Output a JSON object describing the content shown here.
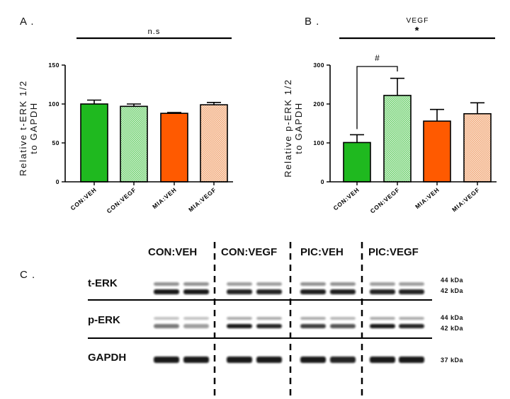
{
  "panels": {
    "a_label": "A .",
    "b_label": "B .",
    "c_label": "C ."
  },
  "chart_data": [
    {
      "type": "bar",
      "panel": "A",
      "title": "",
      "ylabel_line1": "Relative t-ERK 1/2",
      "ylabel_line2": "to GAPDH",
      "ylim": [
        0,
        150
      ],
      "yticks": [
        "0",
        "50",
        "100",
        "150"
      ],
      "categories": [
        "CON:VEH",
        "CON:VEGF",
        "MIA:VEH",
        "MIA:VEGF"
      ],
      "values": [
        100,
        97,
        88,
        99
      ],
      "errors": [
        5,
        3,
        1,
        3
      ],
      "fills": [
        "solid-green",
        "check-green",
        "solid-orange",
        "check-orange"
      ],
      "annotation": "n.s",
      "bracket": null
    },
    {
      "type": "bar",
      "panel": "B",
      "title": "VEGF",
      "ylabel_line1": "Relative p-ERK 1/2",
      "ylabel_line2": "to GAPDH",
      "ylim": [
        0,
        300
      ],
      "yticks": [
        "0",
        "100",
        "200",
        "300"
      ],
      "categories": [
        "CON:VEH",
        "CON:VEGF",
        "MIA:VEH",
        "MIA:VEGF"
      ],
      "values": [
        101,
        222,
        156,
        175
      ],
      "errors": [
        20,
        44,
        30,
        28
      ],
      "fills": [
        "solid-green",
        "check-green",
        "solid-orange",
        "check-orange"
      ],
      "annotation": "*",
      "bracket": {
        "from": 0,
        "to": 1,
        "label": "#"
      }
    }
  ],
  "colors": {
    "green": "#1fb91f",
    "green_check_a": "#6ccf6c",
    "green_check_b": "#d8f3d8",
    "orange": "#ff5a00",
    "orange_check_a": "#f0a878",
    "orange_check_b": "#fce4d4"
  },
  "blot": {
    "groups": [
      "CON:VEH",
      "CON:VEGF",
      "PIC:VEH",
      "PIC:VEGF"
    ],
    "rows": [
      "t-ERK",
      "p-ERK",
      "GAPDH"
    ],
    "kda": {
      "terk_top": "44 kDa",
      "terk_bottom": "42 kDa",
      "perk_top": "44 kDa",
      "perk_bottom": "42 kDa",
      "gapdh": "37 kDa"
    }
  }
}
